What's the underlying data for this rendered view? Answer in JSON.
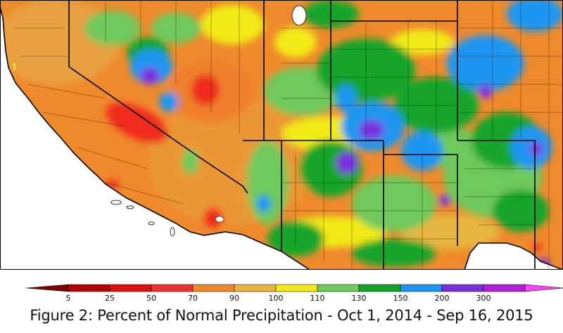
{
  "caption": "Figure 2: Percent of Normal Precipitation - Oct 1, 2014 - Sep 16, 2015",
  "legend": {
    "bins": [
      {
        "label": "5",
        "color": "#b40000"
      },
      {
        "label": "25",
        "color": "#e01010"
      },
      {
        "label": "50",
        "color": "#f03030"
      },
      {
        "label": "70",
        "color": "#ef8a2c"
      },
      {
        "label": "90",
        "color": "#e8b640"
      },
      {
        "label": "100",
        "color": "#f2ea14"
      },
      {
        "label": "110",
        "color": "#6fc95c"
      },
      {
        "label": "130",
        "color": "#12a52a"
      },
      {
        "label": "150",
        "color": "#1e96f0"
      },
      {
        "label": "200",
        "color": "#7a2ee0"
      },
      {
        "label": "300",
        "color": "#b020d8"
      }
    ],
    "low_end_color": "#7a0000",
    "high_end_color": "#ff40ff"
  },
  "map": {
    "ocean_color": "#ffffff",
    "mexico_color": "#ffffff",
    "boundary_color": "#000000"
  }
}
